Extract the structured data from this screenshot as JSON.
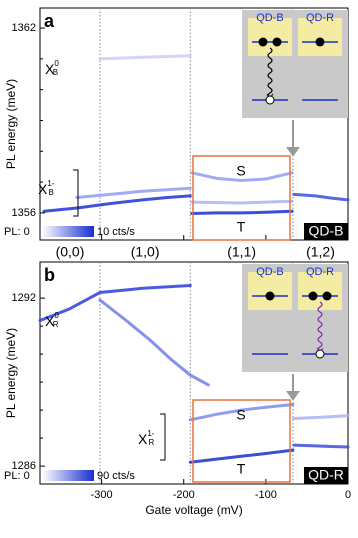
{
  "chart_data": [
    {
      "type": "line",
      "panel": "a",
      "ylabel": "PL energy (meV)",
      "xlim": [
        -375,
        0
      ],
      "ylim": [
        1355.12,
        1362.65
      ],
      "yticks": [
        1356,
        1362
      ],
      "yminor": [
        1357,
        1358,
        1359,
        1360,
        1361
      ],
      "transitions": [
        -302,
        -192,
        -67
      ],
      "charge_states": [
        "(0,0)",
        "(1,0)",
        "(1,1)",
        "(1,2)"
      ],
      "peaks": [
        {
          "base": "X",
          "sup": "0",
          "sub": "B"
        },
        {
          "base": "X",
          "sup": "1-",
          "sub": "B"
        }
      ],
      "box_labels": [
        "S",
        "T"
      ],
      "inset_labels": [
        "QD-B",
        "QD-R"
      ],
      "colorbar_labels": [
        "PL: 0",
        "10 cts/s"
      ],
      "corner_label": "QD-B",
      "series": [
        {
          "color": "#1f33d6",
          "x": [
            -370,
            -330,
            -290,
            -250,
            -220,
            -192
          ],
          "values": [
            1356.05,
            1356.16,
            1356.3,
            1356.42,
            1356.5,
            1356.55
          ]
        },
        {
          "color": "#8f9cf0",
          "x": [
            -330,
            -290,
            -250,
            -192
          ],
          "values": [
            1356.5,
            1356.6,
            1356.7,
            1356.8
          ]
        },
        {
          "color": "#1a2fd0",
          "x": [
            -190,
            -160,
            -130,
            -100,
            -68
          ],
          "values": [
            1355.98,
            1356.0,
            1356.0,
            1356.02,
            1356.05
          ]
        },
        {
          "color": "#8f9cf0",
          "x": [
            -190,
            -160,
            -130,
            -100,
            -68
          ],
          "values": [
            1357.3,
            1357.12,
            1357.05,
            1357.1,
            1357.3
          ]
        },
        {
          "color": "#a9b3f3",
          "x": [
            -190,
            -130,
            -68
          ],
          "values": [
            1356.35,
            1356.32,
            1356.38
          ]
        },
        {
          "color": "#3b4fdc",
          "x": [
            -66,
            -40,
            -20,
            0
          ],
          "values": [
            1356.6,
            1356.55,
            1356.48,
            1356.42
          ]
        },
        {
          "color": "#c9cff8",
          "x": [
            -302,
            -250,
            -192
          ],
          "values": [
            1361.0,
            1361.05,
            1361.1
          ]
        }
      ]
    },
    {
      "type": "line",
      "panel": "b",
      "ylabel": "PL energy (meV)",
      "xlabel": "Gate voltage (mV)",
      "xlim": [
        -375,
        0
      ],
      "ylim": [
        1285.36,
        1293.29
      ],
      "xticks": [
        -300,
        -200,
        -100,
        0
      ],
      "yticks": [
        1286,
        1292
      ],
      "yminor": [
        1287,
        1288,
        1289,
        1290,
        1291
      ],
      "transitions": [
        -302,
        -192,
        -67
      ],
      "peaks": [
        {
          "base": "X",
          "sup": "0",
          "sub": "R"
        },
        {
          "base": "X",
          "sup": "1-",
          "sub": "R"
        }
      ],
      "box_labels": [
        "S",
        "T"
      ],
      "inset_labels": [
        "QD-B",
        "QD-R"
      ],
      "colorbar_labels": [
        "PL: 0",
        "90 cts/s"
      ],
      "corner_label": "QD-R",
      "series": [
        {
          "color": "#2a3ed8",
          "x": [
            -375,
            -340,
            -302,
            -250,
            -192
          ],
          "values": [
            1291.2,
            1291.6,
            1292.2,
            1292.35,
            1292.45
          ]
        },
        {
          "color": "#6f7fe8",
          "x": [
            -302,
            -270,
            -241,
            -215,
            -192,
            -170
          ],
          "values": [
            1291.93,
            1291.2,
            1290.5,
            1289.8,
            1289.25,
            1288.9
          ]
        },
        {
          "color": "#7d8cec",
          "x": [
            -192,
            -160,
            -130,
            -100,
            -67
          ],
          "values": [
            1287.65,
            1287.85,
            1288.0,
            1288.1,
            1288.2
          ]
        },
        {
          "color": "#1a2fd0",
          "x": [
            -192,
            -160,
            -130,
            -100,
            -67
          ],
          "values": [
            1286.14,
            1286.25,
            1286.35,
            1286.45,
            1286.57
          ]
        },
        {
          "color": "#3b4fdc",
          "x": [
            -66,
            -40,
            -20,
            0
          ],
          "values": [
            1286.75,
            1286.72,
            1286.7,
            1286.68
          ]
        },
        {
          "color": "#a9b3f3",
          "x": [
            -66,
            -30,
            0
          ],
          "values": [
            1287.7,
            1287.75,
            1287.8
          ]
        }
      ]
    }
  ]
}
